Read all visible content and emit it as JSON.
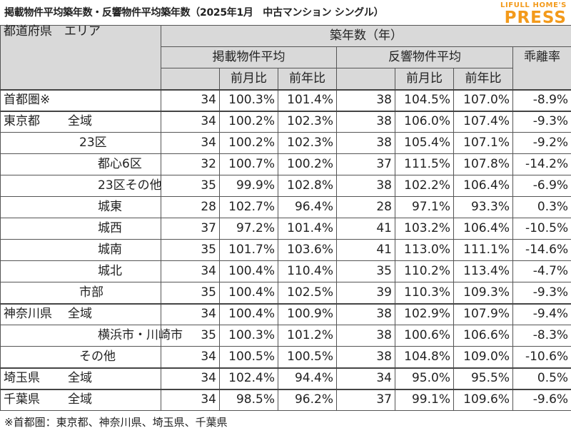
{
  "title": "掲載物件平均築年数・反響物件平均築年数（2025年1月　中古マンション シングル）",
  "brand": {
    "top": "LIFULL HOME'S",
    "main": "PRESS"
  },
  "header": {
    "region": "都道府県　エリア",
    "main": "築年数（年）",
    "listed": "掲載物件平均",
    "inquired": "反響物件平均",
    "gap": "乖離率",
    "mom": "前月比",
    "yoy": "前年比"
  },
  "chart_data": {
    "type": "table",
    "columns": [
      "都道府県",
      "エリア",
      "掲載物件平均",
      "前月比",
      "前年比",
      "反響物件平均",
      "前月比",
      "前年比",
      "乖離率"
    ],
    "rows": [
      {
        "pref": "首都圏※",
        "area": "",
        "listed": "34",
        "l_mom": "100.3%",
        "l_yoy": "101.4%",
        "inq": "38",
        "i_mom": "104.5%",
        "i_yoy": "107.0%",
        "gap": "-8.9%"
      },
      {
        "pref": "東京都",
        "area": "全域",
        "listed": "34",
        "l_mom": "100.2%",
        "l_yoy": "102.3%",
        "inq": "38",
        "i_mom": "106.0%",
        "i_yoy": "107.4%",
        "gap": "-9.3%"
      },
      {
        "pref": "",
        "area": "23区",
        "listed": "34",
        "l_mom": "100.2%",
        "l_yoy": "102.3%",
        "inq": "38",
        "i_mom": "105.4%",
        "i_yoy": "107.1%",
        "gap": "-9.2%"
      },
      {
        "pref": "",
        "area": "都心6区",
        "listed": "32",
        "l_mom": "100.7%",
        "l_yoy": "100.2%",
        "inq": "37",
        "i_mom": "111.5%",
        "i_yoy": "107.8%",
        "gap": "-14.2%"
      },
      {
        "pref": "",
        "area": "23区その他",
        "listed": "35",
        "l_mom": "99.9%",
        "l_yoy": "102.8%",
        "inq": "38",
        "i_mom": "102.2%",
        "i_yoy": "106.4%",
        "gap": "-6.9%"
      },
      {
        "pref": "",
        "area": "城東",
        "listed": "28",
        "l_mom": "102.7%",
        "l_yoy": "96.4%",
        "inq": "28",
        "i_mom": "97.1%",
        "i_yoy": "93.3%",
        "gap": "0.3%"
      },
      {
        "pref": "",
        "area": "城西",
        "listed": "37",
        "l_mom": "97.2%",
        "l_yoy": "101.4%",
        "inq": "41",
        "i_mom": "103.2%",
        "i_yoy": "106.4%",
        "gap": "-10.5%"
      },
      {
        "pref": "",
        "area": "城南",
        "listed": "35",
        "l_mom": "101.7%",
        "l_yoy": "103.6%",
        "inq": "41",
        "i_mom": "113.0%",
        "i_yoy": "111.1%",
        "gap": "-14.6%"
      },
      {
        "pref": "",
        "area": "城北",
        "listed": "34",
        "l_mom": "100.4%",
        "l_yoy": "110.4%",
        "inq": "35",
        "i_mom": "110.2%",
        "i_yoy": "113.4%",
        "gap": "-4.7%"
      },
      {
        "pref": "",
        "area": "市部",
        "listed": "35",
        "l_mom": "100.4%",
        "l_yoy": "102.5%",
        "inq": "39",
        "i_mom": "110.3%",
        "i_yoy": "109.3%",
        "gap": "-9.3%"
      },
      {
        "pref": "神奈川県",
        "area": "全域",
        "listed": "34",
        "l_mom": "100.4%",
        "l_yoy": "100.9%",
        "inq": "38",
        "i_mom": "102.9%",
        "i_yoy": "107.9%",
        "gap": "-9.4%"
      },
      {
        "pref": "",
        "area": "横浜市・川崎市",
        "listed": "35",
        "l_mom": "100.3%",
        "l_yoy": "101.2%",
        "inq": "38",
        "i_mom": "100.6%",
        "i_yoy": "106.6%",
        "gap": "-8.3%"
      },
      {
        "pref": "",
        "area": "その他",
        "listed": "34",
        "l_mom": "100.5%",
        "l_yoy": "100.5%",
        "inq": "38",
        "i_mom": "104.8%",
        "i_yoy": "109.0%",
        "gap": "-10.6%"
      },
      {
        "pref": "埼玉県",
        "area": "全域",
        "listed": "34",
        "l_mom": "102.4%",
        "l_yoy": "94.4%",
        "inq": "34",
        "i_mom": "95.0%",
        "i_yoy": "95.5%",
        "gap": "0.5%"
      },
      {
        "pref": "千葉県",
        "area": "全域",
        "listed": "34",
        "l_mom": "98.5%",
        "l_yoy": "96.2%",
        "inq": "37",
        "i_mom": "99.1%",
        "i_yoy": "109.6%",
        "gap": "-9.6%"
      }
    ]
  },
  "footnote": "※首都圏：東京都、神奈川県、埼玉県、千葉県",
  "colors": {
    "header_bg": "#d9d9d9",
    "brand": "#f39a1b"
  }
}
